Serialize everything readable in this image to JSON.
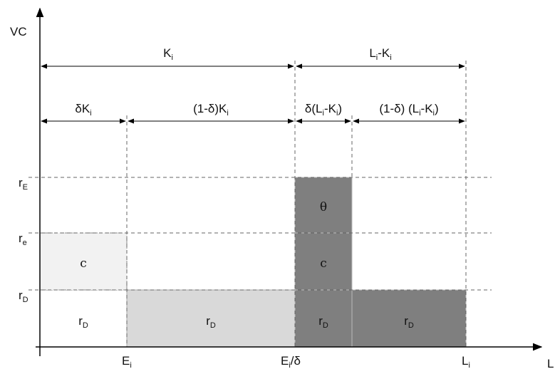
{
  "axes": {
    "y_label": "VC",
    "x_label": "L",
    "y_ticks": [
      {
        "main": "r",
        "sub": "E"
      },
      {
        "main": "r",
        "sub": "e"
      },
      {
        "main": "r",
        "sub": "D"
      }
    ],
    "x_ticks": [
      {
        "main": "E",
        "sub": "i",
        "suffix": ""
      },
      {
        "main": "E",
        "sub": "i",
        "suffix": "/δ"
      },
      {
        "main": "L",
        "sub": "i",
        "suffix": ""
      }
    ]
  },
  "spans_top": [
    {
      "pre": "K",
      "sub": "i",
      "post": ""
    },
    {
      "pre": "L",
      "sub": "i",
      "post": "-K",
      "sub2": "i",
      "post2": ""
    }
  ],
  "spans_mid": [
    {
      "pre": "δK",
      "sub": "i",
      "post": ""
    },
    {
      "pre": "(1-δ)K",
      "sub": "i",
      "post": ""
    },
    {
      "pre": "δ(L",
      "sub": "i",
      "post": "-K",
      "sub2": "i",
      "post2": ")"
    },
    {
      "pre": "(1-δ) (L",
      "sub": "i",
      "post": "-K",
      "sub2": "i",
      "post2": ")"
    }
  ],
  "blocks": [
    {
      "label_main": "r",
      "label_sub": "D",
      "fill": "#ffffff"
    },
    {
      "label_main": "c",
      "label_sub": "",
      "fill": "#f2f2f2"
    },
    {
      "label_main": "r",
      "label_sub": "D",
      "fill": "#d9d9d9"
    },
    {
      "label_main": "r",
      "label_sub": "D",
      "fill": "#7f7f7f"
    },
    {
      "label_main": "c",
      "label_sub": "",
      "fill": "#7f7f7f"
    },
    {
      "label_main": "θ",
      "label_sub": "",
      "fill": "#7f7f7f"
    },
    {
      "label_main": "r",
      "label_sub": "D",
      "fill": "#7f7f7f"
    }
  ]
}
